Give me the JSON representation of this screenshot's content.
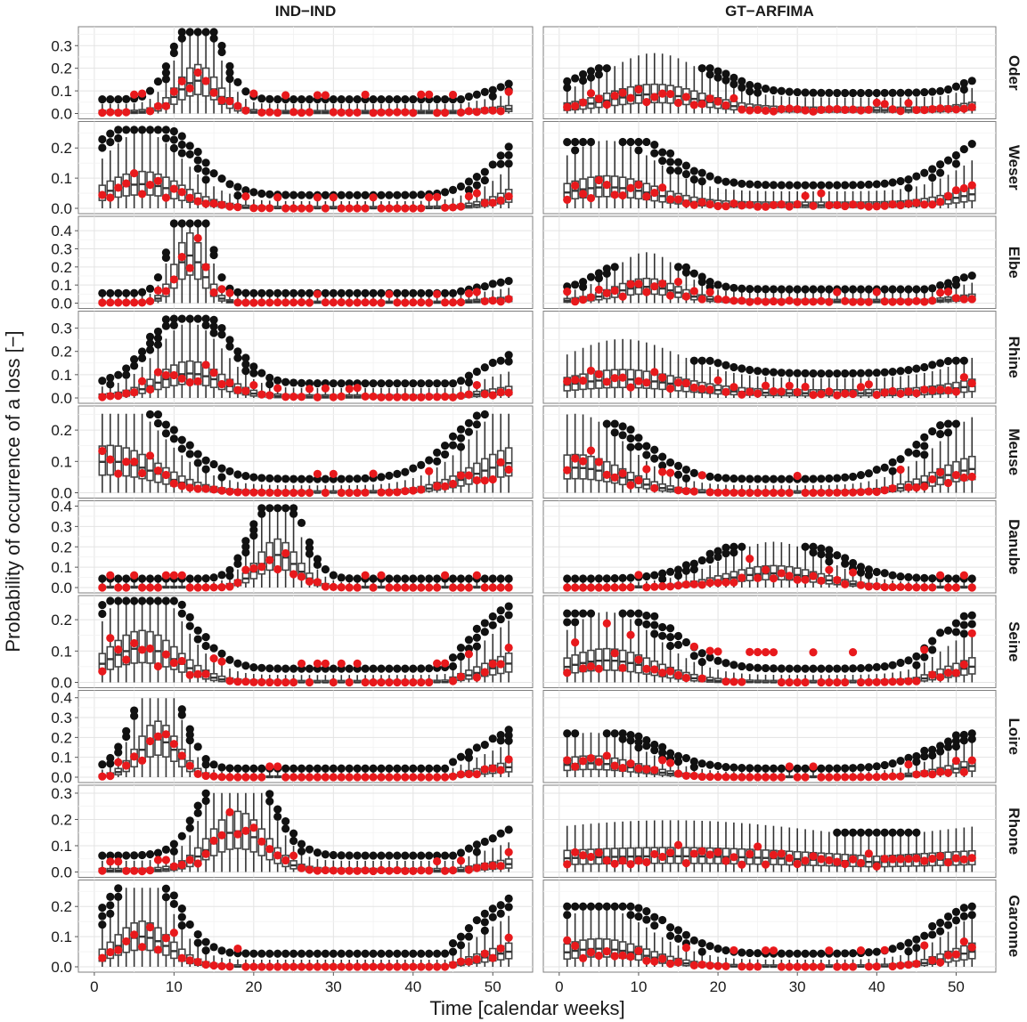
{
  "chart_data": {
    "type": "box+scatter",
    "facet_columns": [
      "IND−IND",
      "GT−ARFIMA"
    ],
    "facet_rows": [
      "Oder",
      "Weser",
      "Elbe",
      "Rhine",
      "Meuse",
      "Danube",
      "Seine",
      "Loire",
      "Rhone",
      "Garonne"
    ],
    "xlabel": "Time [calendar weeks]",
    "ylabel": "Probability of occurrence of a loss [−]",
    "xlim": [
      -2,
      55
    ],
    "x_ticks": [
      0,
      10,
      20,
      30,
      40,
      50
    ],
    "weeks": [
      1,
      52
    ],
    "series_colors": {
      "observed": "#e8191c",
      "outlier": "#111111"
    },
    "rows": [
      {
        "name": "Oder",
        "ylim": [
          0,
          0.36
        ],
        "y_ticks": [
          0,
          0.1,
          0.2,
          0.3
        ],
        "y_tick_labels": [
          "0.0",
          "0.1",
          "0.2",
          "0.3"
        ],
        "left": {
          "season": "spring",
          "peak_week": 13,
          "sd": 2.5,
          "peak": 0.14,
          "base": 0.005,
          "outlier_max": 0.36,
          "obs_peak": 0.13,
          "late_base": 0.02
        },
        "right": {
          "season": "flat",
          "peak_week": 12,
          "sd": 6,
          "peak": 0.07,
          "base": 0.015,
          "outlier_max": 0.2,
          "obs_peak": 0.05,
          "late_base": 0.03
        }
      },
      {
        "name": "Weser",
        "ylim": [
          0,
          0.27
        ],
        "y_ticks": [
          0,
          0.1,
          0.2
        ],
        "y_tick_labels": [
          "0.0",
          "0.1",
          "0.2"
        ],
        "left": {
          "season": "winter",
          "peak_week": 6,
          "sd": 5,
          "peak": 0.08,
          "base": 0.0,
          "outlier_max": 0.26,
          "obs_peak": 0.06,
          "late_base": 0.02
        },
        "right": {
          "season": "winter",
          "peak_week": 6,
          "sd": 6,
          "peak": 0.06,
          "base": 0.01,
          "outlier_max": 0.22,
          "obs_peak": 0.06,
          "late_base": 0.04
        }
      },
      {
        "name": "Elbe",
        "ylim": [
          0,
          0.45
        ],
        "y_ticks": [
          0,
          0.1,
          0.2,
          0.3,
          0.4
        ],
        "y_tick_labels": [
          "0.0",
          "0.1",
          "0.2",
          "0.3",
          "0.4"
        ],
        "left": {
          "season": "spring",
          "peak_week": 12,
          "sd": 1.8,
          "peak": 0.26,
          "base": 0.003,
          "outlier_max": 0.44,
          "obs_peak": 0.08,
          "late_base": 0.02
        },
        "right": {
          "season": "spring",
          "peak_week": 11,
          "sd": 4,
          "peak": 0.08,
          "base": 0.01,
          "outlier_max": 0.2,
          "obs_peak": 0.08,
          "late_base": 0.03
        }
      },
      {
        "name": "Rhine",
        "ylim": [
          0,
          0.35
        ],
        "y_ticks": [
          0,
          0.1,
          0.2,
          0.3
        ],
        "y_tick_labels": [
          "0.0",
          "0.1",
          "0.2",
          "0.3"
        ],
        "left": {
          "season": "winter",
          "peak_week": 12,
          "sd": 4,
          "peak": 0.1,
          "base": 0.005,
          "outlier_max": 0.34,
          "obs_peak": 0.06,
          "late_base": 0.03
        },
        "right": {
          "season": "winter",
          "peak_week": 8,
          "sd": 7,
          "peak": 0.06,
          "base": 0.02,
          "outlier_max": 0.16,
          "obs_peak": 0.05,
          "late_base": 0.04
        }
      },
      {
        "name": "Meuse",
        "ylim": [
          0,
          0.26
        ],
        "y_ticks": [
          0,
          0.1,
          0.2
        ],
        "y_tick_labels": [
          "0.0",
          "0.1",
          "0.2"
        ],
        "left": {
          "season": "winter",
          "peak_week": 2,
          "sd": 6,
          "peak": 0.1,
          "base": 0.0,
          "outlier_max": 0.25,
          "obs_peak": 0.1,
          "late_base": 0.05
        },
        "right": {
          "season": "winter",
          "peak_week": 2,
          "sd": 6,
          "peak": 0.08,
          "base": 0.0,
          "outlier_max": 0.22,
          "obs_peak": 0.09,
          "late_base": 0.05
        }
      },
      {
        "name": "Danube",
        "ylim": [
          0,
          0.4
        ],
        "y_ticks": [
          0,
          0.1,
          0.2,
          0.3,
          0.4
        ],
        "y_tick_labels": [
          "0.0",
          "0.1",
          "0.2",
          "0.3",
          "0.4"
        ],
        "left": {
          "season": "summer",
          "peak_week": 23,
          "sd": 2.5,
          "peak": 0.16,
          "base": 0.0,
          "outlier_max": 0.39,
          "obs_peak": 0.1,
          "late_base": 0.0
        },
        "right": {
          "season": "summer",
          "peak_week": 27,
          "sd": 6,
          "peak": 0.07,
          "base": 0.0,
          "outlier_max": 0.2,
          "obs_peak": 0.1,
          "late_base": 0.0
        }
      },
      {
        "name": "Seine",
        "ylim": [
          0,
          0.26
        ],
        "y_ticks": [
          0,
          0.1,
          0.2
        ],
        "y_tick_labels": [
          "0.0",
          "0.1",
          "0.2"
        ],
        "left": {
          "season": "winter",
          "peak_week": 6,
          "sd": 4.5,
          "peak": 0.11,
          "base": 0.0,
          "outlier_max": 0.26,
          "obs_peak": 0.1,
          "late_base": 0.06
        },
        "right": {
          "season": "winter",
          "peak_week": 6,
          "sd": 6,
          "peak": 0.07,
          "base": 0.0,
          "outlier_max": 0.22,
          "obs_peak": 0.16,
          "late_base": 0.05
        }
      },
      {
        "name": "Loire",
        "ylim": [
          0,
          0.41
        ],
        "y_ticks": [
          0,
          0.1,
          0.2,
          0.3,
          0.4
        ],
        "y_tick_labels": [
          "0.0",
          "0.1",
          "0.2",
          "0.3",
          "0.4"
        ],
        "left": {
          "season": "winter",
          "peak_week": 8,
          "sd": 2.5,
          "peak": 0.19,
          "base": 0.0,
          "outlier_max": 0.38,
          "obs_peak": 0.09,
          "late_base": 0.05
        },
        "right": {
          "season": "winter",
          "peak_week": 4,
          "sd": 6,
          "peak": 0.07,
          "base": 0.0,
          "outlier_max": 0.22,
          "obs_peak": 0.09,
          "late_base": 0.05
        }
      },
      {
        "name": "Rhone",
        "ylim": [
          0,
          0.31
        ],
        "y_ticks": [
          0,
          0.1,
          0.2,
          0.3
        ],
        "y_tick_labels": [
          "0.0",
          "0.1",
          "0.2",
          "0.3"
        ],
        "left": {
          "season": "summer",
          "peak_week": 18,
          "sd": 3.5,
          "peak": 0.15,
          "base": 0.005,
          "outlier_max": 0.3,
          "obs_peak": 0.06,
          "late_base": 0.03
        },
        "right": {
          "season": "flat",
          "peak_week": 14,
          "sd": 20,
          "peak": 0.04,
          "base": 0.02,
          "outlier_max": 0.15,
          "obs_peak": 0.04,
          "late_base": 0.04
        }
      },
      {
        "name": "Garonne",
        "ylim": [
          0,
          0.27
        ],
        "y_ticks": [
          0,
          0.1,
          0.2
        ],
        "y_tick_labels": [
          "0.0",
          "0.1",
          "0.2"
        ],
        "left": {
          "season": "winter",
          "peak_week": 6,
          "sd": 3.5,
          "peak": 0.1,
          "base": 0.0,
          "outlier_max": 0.26,
          "obs_peak": 0.1,
          "late_base": 0.05
        },
        "right": {
          "season": "winter",
          "peak_week": 5,
          "sd": 6,
          "peak": 0.06,
          "base": 0.0,
          "outlier_max": 0.2,
          "obs_peak": 0.09,
          "late_base": 0.05
        }
      }
    ]
  }
}
